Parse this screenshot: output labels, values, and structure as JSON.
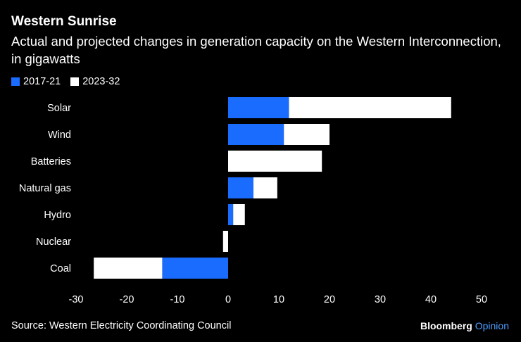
{
  "header": {
    "title": "Western Sunrise",
    "subtitle": "Actual and projected changes in generation capacity on the Western Interconnection, in gigawatts"
  },
  "footer": {
    "source": "Source: Western Electricity Coordinating Council",
    "brand_main": "Bloomberg",
    "brand_accent": "Opinion"
  },
  "colors": {
    "background": "#000000",
    "series_2017_21": "#1a6cff",
    "series_2023_32": "#ffffff",
    "brand_accent": "#4d9cff"
  },
  "chart_data": {
    "type": "bar",
    "orientation": "horizontal",
    "stacked": true,
    "title": "Western Sunrise",
    "categories": [
      "Solar",
      "Wind",
      "Batteries",
      "Natural gas",
      "Hydro",
      "Nuclear",
      "Coal"
    ],
    "series": [
      {
        "name": "2017-21",
        "color": "#1a6cff",
        "values": [
          12,
          11,
          0,
          5,
          1,
          0,
          -13
        ]
      },
      {
        "name": "2023-32",
        "color": "#ffffff",
        "values": [
          32,
          9,
          18.5,
          4.7,
          2.3,
          -1,
          -13.5
        ]
      }
    ],
    "xlim": [
      -30,
      50
    ],
    "xticks": [
      -30,
      -20,
      -10,
      0,
      10,
      20,
      30,
      40,
      50
    ],
    "xlabel": "",
    "ylabel": "",
    "grid": false,
    "legend_position": "top-left"
  }
}
